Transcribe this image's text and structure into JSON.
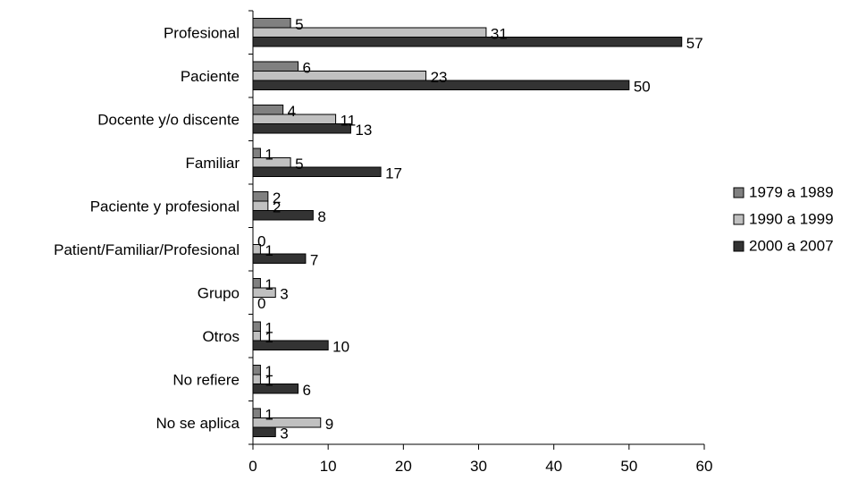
{
  "chart_data": {
    "type": "bar",
    "orientation": "horizontal",
    "categories": [
      "Profesional",
      "Paciente",
      "Docente y/o discente",
      "Familiar",
      "Paciente y profesional",
      "Patient/Familiar/Profesional",
      "Grupo",
      "Otros",
      "No refiere",
      "No se aplica"
    ],
    "series": [
      {
        "name": "1979 a 1989",
        "color": "#808080",
        "values": [
          5,
          6,
          4,
          1,
          2,
          0,
          1,
          1,
          1,
          1
        ]
      },
      {
        "name": "1990 a 1999",
        "color": "#c0c0c0",
        "values": [
          31,
          23,
          11,
          5,
          2,
          1,
          3,
          1,
          1,
          9
        ]
      },
      {
        "name": "2000 a 2007",
        "color": "#333333",
        "values": [
          57,
          50,
          13,
          17,
          8,
          7,
          0,
          10,
          6,
          3
        ]
      }
    ],
    "xlim": [
      0,
      60
    ],
    "xticks": [
      0,
      10,
      20,
      30,
      40,
      50,
      60
    ],
    "grid": false,
    "legend": "right"
  }
}
